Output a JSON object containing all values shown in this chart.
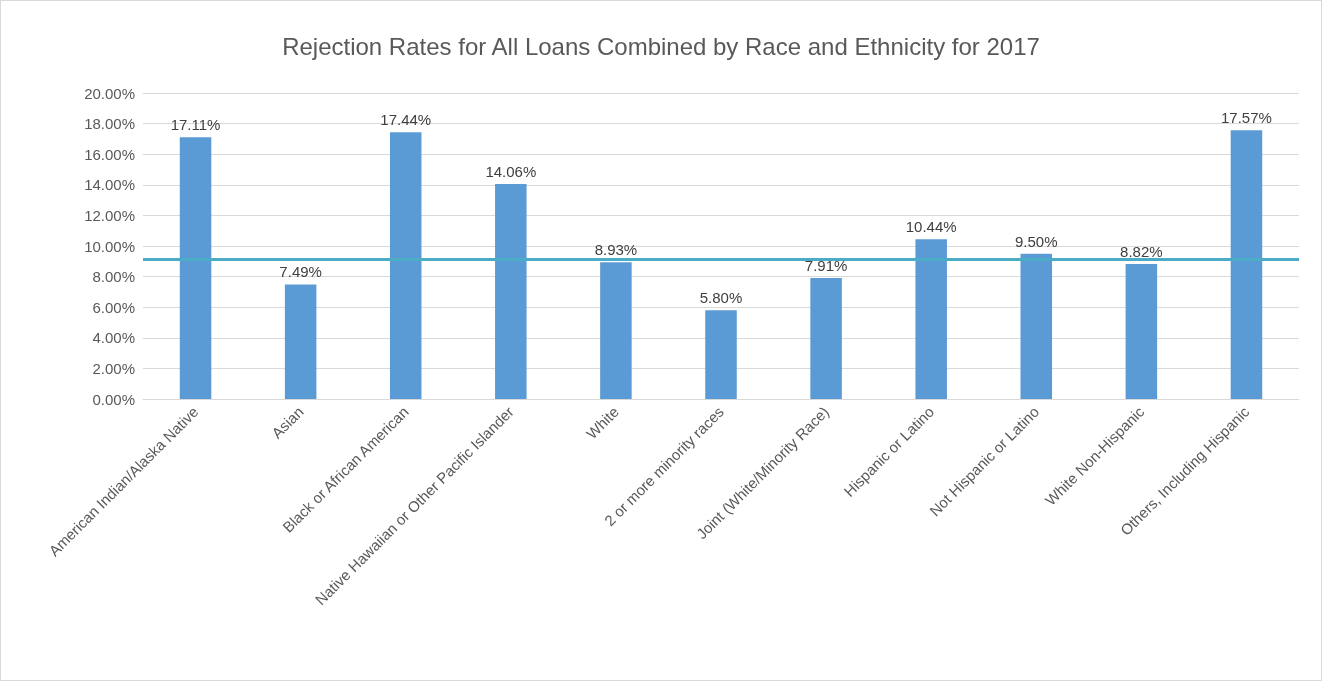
{
  "chart_data": {
    "type": "bar",
    "title": "Rejection Rates for All Loans Combined by Race and Ethnicity for 2017",
    "categories": [
      "American Indian/Alaska Native",
      "Asian",
      "Black or African American",
      "Native Hawaiian or Other Pacific Islander",
      "White",
      "2 or more minority races",
      "Joint (White/Minority Race)",
      "Hispanic or Latino",
      "Not Hispanic or Latino",
      "White Non-Hispanic",
      "Others, Including Hispanic"
    ],
    "values": [
      17.11,
      7.49,
      17.44,
      14.06,
      8.93,
      5.8,
      7.91,
      10.44,
      9.5,
      8.82,
      17.57
    ],
    "value_labels": [
      "17.11%",
      "7.49%",
      "17.44%",
      "14.06%",
      "8.93%",
      "5.80%",
      "7.91%",
      "10.44%",
      "9.50%",
      "8.82%",
      "17.57%"
    ],
    "color": "#5b9bd5",
    "ylim": [
      0,
      20
    ],
    "yticks": [
      {
        "value": 0,
        "label": "0.00%"
      },
      {
        "value": 2,
        "label": "2.00%"
      },
      {
        "value": 4,
        "label": "4.00%"
      },
      {
        "value": 6,
        "label": "6.00%"
      },
      {
        "value": 8,
        "label": "8.00%"
      },
      {
        "value": 10,
        "label": "10.00%"
      },
      {
        "value": 12,
        "label": "12.00%"
      },
      {
        "value": 14,
        "label": "14.00%"
      },
      {
        "value": 16,
        "label": "16.00%"
      },
      {
        "value": 18,
        "label": "18.00%"
      },
      {
        "value": 20,
        "label": "20.00%"
      }
    ],
    "grid": true,
    "ref_lines": [
      {
        "axis": "y",
        "value": 9.15,
        "color": "#4bacc6",
        "line_style": "solid"
      }
    ]
  }
}
